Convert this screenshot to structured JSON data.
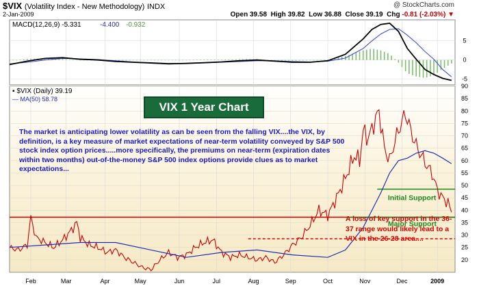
{
  "header": {
    "symbol": "$VIX",
    "name": "(Volatility Index - New Methodology)",
    "exchange": "INDX",
    "date": "2-Jan-2009",
    "brand": "@ StockCharts.com",
    "open_label": "Open",
    "open": "39.58",
    "high_label": "High",
    "high": "39.82",
    "low_label": "Low",
    "low": "36.88",
    "close_label": "Close",
    "close": "39.19",
    "chg_label": "Chg",
    "chg": "-0.81 (-2.03%)"
  },
  "macd_panel": {
    "label": "MACD(12,26,9)",
    "macd_value": "-5.331",
    "signal_value": "-4.400",
    "hist_value": "-0.932",
    "yticks": [
      "5",
      "0",
      "-5"
    ]
  },
  "price_panel": {
    "series_label": "$VIX (Daily) 39.19",
    "ma_label": "MA(50) 58.78",
    "chart_title": "VIX 1 Year Chart",
    "annotation_main": "The market is anticipating lower volatility as can be seen from the falling VIX....the VIX, by definition, is a key measure of market expectations of near-term volatility conveyed by S&P 500 stock index option prices.....more specifically, the premiums on near-term (expiration dates within two months) out-of-the-money S&P 500 index options provide clues as to market expectations...",
    "annotation_loss": "A loss of key support in the 36-37 range would likely lead to a VIX in the 26-28 area....",
    "initial_support_label": "Initial Support",
    "major_support_label": "Major Support"
  },
  "colors": {
    "price_bg": "#f5e9c6",
    "price_line": "#cc0000",
    "ma_line": "#1e2fb4",
    "support_green": "#1b8a1b",
    "major_red": "#cc0000",
    "loss_dashed": "#dd0000"
  },
  "chart_data": [
    {
      "type": "line",
      "panel": "MACD",
      "title": "MACD(12,26,9)",
      "ylim": [
        -6.5,
        10.5
      ],
      "yticks": [
        5,
        0,
        -5
      ],
      "x_months": [
        "Feb",
        "Mar",
        "Apr",
        "May",
        "Jun",
        "Jul",
        "Aug",
        "Sep",
        "Oct",
        "Nov",
        "Dec",
        "2009"
      ],
      "series": [
        {
          "name": "MACD",
          "x": [
            0,
            10,
            20,
            30,
            40,
            50,
            60,
            70,
            80,
            90,
            100,
            110,
            120,
            130,
            140,
            150,
            160,
            170,
            180,
            190,
            200,
            205,
            210,
            215,
            220,
            225,
            230,
            235,
            240,
            245,
            250
          ],
          "values": [
            -1.2,
            -0.3,
            0.4,
            0.6,
            0.2,
            0.0,
            -0.4,
            -0.6,
            -0.8,
            -1.0,
            -0.9,
            -0.7,
            -0.5,
            -0.2,
            0.0,
            -0.3,
            -0.6,
            -0.6,
            -0.2,
            1.5,
            5.5,
            8.0,
            9.3,
            9.6,
            7.5,
            3.0,
            0.2,
            -2.5,
            -3.8,
            -4.8,
            -5.33
          ]
        },
        {
          "name": "Signal",
          "x": [
            0,
            10,
            20,
            30,
            40,
            50,
            60,
            70,
            80,
            90,
            100,
            110,
            120,
            130,
            140,
            150,
            160,
            170,
            180,
            190,
            200,
            205,
            210,
            215,
            220,
            225,
            230,
            235,
            240,
            245,
            250
          ],
          "values": [
            -1.0,
            -0.6,
            0.0,
            0.4,
            0.3,
            0.1,
            -0.2,
            -0.5,
            -0.7,
            -0.9,
            -0.9,
            -0.8,
            -0.6,
            -0.4,
            -0.2,
            -0.2,
            -0.4,
            -0.5,
            -0.3,
            0.5,
            3.0,
            5.0,
            6.8,
            8.0,
            8.2,
            6.5,
            4.5,
            2.2,
            0.2,
            -2.5,
            -4.4
          ]
        }
      ]
    },
    {
      "type": "line",
      "panel": "Price",
      "title": "$VIX (Daily) 39.19",
      "ylim": [
        15,
        90
      ],
      "yticks": [
        90,
        85,
        80,
        75,
        70,
        65,
        60,
        55,
        50,
        45,
        40,
        35,
        30,
        25,
        20
      ],
      "x_months": [
        "Feb",
        "Mar",
        "Apr",
        "May",
        "Jun",
        "Jul",
        "Aug",
        "Sep",
        "Oct",
        "Nov",
        "Dec",
        "2009"
      ],
      "series": [
        {
          "name": "$VIX",
          "x": [
            0,
            5,
            10,
            12,
            15,
            20,
            25,
            30,
            35,
            38,
            40,
            45,
            50,
            55,
            60,
            65,
            70,
            75,
            80,
            85,
            90,
            95,
            100,
            105,
            110,
            115,
            120,
            125,
            130,
            135,
            140,
            145,
            150,
            155,
            160,
            165,
            170,
            175,
            180,
            185,
            190,
            195,
            198,
            200,
            203,
            206,
            209,
            212,
            215,
            218,
            221,
            224,
            227,
            230,
            233,
            236,
            239,
            242,
            245,
            248,
            250
          ],
          "values": [
            25,
            24,
            26,
            37,
            29,
            27,
            25,
            28,
            32,
            35,
            29,
            26,
            25,
            23,
            24,
            21,
            19,
            17,
            16,
            20,
            23,
            21,
            22,
            25,
            27,
            28,
            23,
            21,
            22,
            21,
            20,
            21,
            19,
            22,
            26,
            29,
            34,
            40,
            38,
            45,
            53,
            62,
            60,
            72,
            69,
            75,
            80,
            65,
            60,
            68,
            74,
            79,
            72,
            66,
            62,
            58,
            55,
            48,
            45,
            43,
            39.19
          ]
        },
        {
          "name": "MA(50)",
          "x": [
            0,
            20,
            40,
            60,
            80,
            100,
            120,
            140,
            160,
            180,
            190,
            200,
            210,
            215,
            220,
            225,
            230,
            235,
            240,
            245,
            250
          ],
          "values": [
            25,
            26,
            27,
            27,
            24,
            21,
            23,
            24,
            22,
            21,
            24,
            33,
            47,
            55,
            60,
            61,
            63,
            64,
            63,
            61,
            58.78
          ]
        }
      ],
      "annotations": [
        {
          "label": "Initial Support",
          "value": 48.5
        },
        {
          "label": "Major Support",
          "value": 37.2
        },
        {
          "label": "A loss of key support in the 36-37 range would likely lead to a VIX in the 26-28 area....",
          "value": 28.5
        }
      ]
    }
  ]
}
